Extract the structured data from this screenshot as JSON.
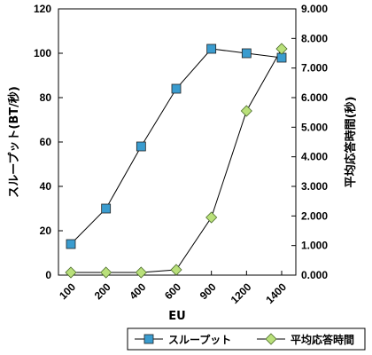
{
  "chart_data": {
    "type": "line",
    "xlabel": "EU",
    "ylabel_left": "スループット(BT/秒)",
    "ylabel_right": "平均応答時間(秒)",
    "categories": [
      "100",
      "200",
      "400",
      "600",
      "900",
      "1200",
      "1400"
    ],
    "y_left_ticks": [
      "0",
      "20",
      "40",
      "60",
      "80",
      "100",
      "120"
    ],
    "y_right_ticks": [
      "0.000",
      "1.000",
      "2.000",
      "3.000",
      "4.000",
      "5.000",
      "6.000",
      "7.000",
      "8.000",
      "9.000"
    ],
    "ylim_left": [
      0,
      120
    ],
    "ylim_right": [
      0,
      9
    ],
    "grid": false,
    "legend_position": "bottom-right",
    "series": [
      {
        "name": "スループット",
        "axis": "left",
        "marker": "square",
        "color": "#3a9ccf",
        "values": [
          14,
          30,
          58,
          84,
          102,
          100,
          98
        ]
      },
      {
        "name": "平均応答時間",
        "axis": "right",
        "marker": "diamond",
        "color": "#b9e07a",
        "values": [
          0.09,
          0.09,
          0.09,
          0.18,
          1.95,
          5.55,
          7.65
        ]
      }
    ]
  }
}
